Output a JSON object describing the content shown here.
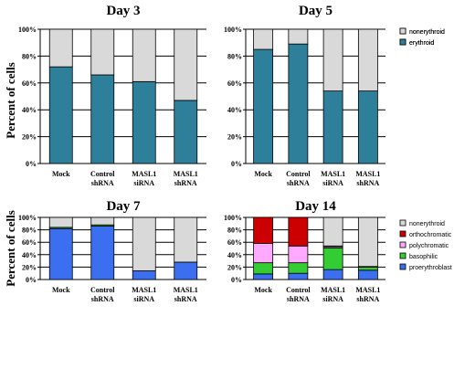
{
  "y_axis_label": "Percent of cells",
  "chart_data": [
    {
      "type": "bar",
      "stacked": true,
      "title": "Day 3",
      "categories": [
        "Mock",
        "Control shRNA",
        "MASL1 siRNA",
        "MASL1 shRNA"
      ],
      "ylim": [
        0,
        100
      ],
      "yticks": [
        "0%",
        "20%",
        "40%",
        "60%",
        "80%",
        "100%"
      ],
      "series": [
        {
          "name": "erythroid",
          "color": "#2e7f99",
          "values": [
            72,
            66,
            61,
            47
          ]
        },
        {
          "name": "nonerythroid",
          "color": "#d9d9d9",
          "values": [
            28,
            34,
            39,
            53
          ]
        }
      ],
      "legend": [
        "nonerythroid",
        "erythroid"
      ]
    },
    {
      "type": "bar",
      "stacked": true,
      "title": "Day 5",
      "categories": [
        "Mock",
        "Control shRNA",
        "MASL1 siRNA",
        "MASL1 shRNA"
      ],
      "ylim": [
        0,
        100
      ],
      "yticks": [
        "0%",
        "20%",
        "40%",
        "60%",
        "80%",
        "100%"
      ],
      "series": [
        {
          "name": "erythroid",
          "color": "#2e7f99",
          "values": [
            85,
            89,
            54,
            54
          ]
        },
        {
          "name": "nonerythroid",
          "color": "#d9d9d9",
          "values": [
            15,
            11,
            46,
            46
          ]
        }
      ],
      "legend": [
        "nonerythroid",
        "erythroid"
      ]
    },
    {
      "type": "bar",
      "stacked": true,
      "title": "Day 7",
      "categories": [
        "Mock",
        "Control shRNA",
        "MASL1 siRNA",
        "MASL1 shRNA"
      ],
      "ylim": [
        0,
        100
      ],
      "yticks": [
        "0%",
        "20%",
        "40%",
        "60%",
        "80%",
        "100%"
      ],
      "series": [
        {
          "name": "proerythroblast",
          "color": "#3b6fef",
          "values": [
            82,
            86,
            14,
            28
          ]
        },
        {
          "name": "basophilic",
          "color": "#33cc33",
          "values": [
            2,
            2,
            0,
            0
          ]
        },
        {
          "name": "nonerythroid",
          "color": "#d9d9d9",
          "values": [
            16,
            12,
            86,
            72
          ]
        }
      ],
      "legend": []
    },
    {
      "type": "bar",
      "stacked": true,
      "title": "Day 14",
      "categories": [
        "Mock",
        "Control shRNA",
        "MASL1 siRNA",
        "MASL1 shRNA"
      ],
      "ylim": [
        0,
        100
      ],
      "yticks": [
        "0%",
        "20%",
        "40%",
        "60%",
        "80%",
        "100%"
      ],
      "series": [
        {
          "name": "proerythroblast",
          "color": "#3b6fef",
          "values": [
            9,
            10,
            16,
            15
          ]
        },
        {
          "name": "basophilic",
          "color": "#33cc33",
          "values": [
            18,
            17,
            35,
            5
          ]
        },
        {
          "name": "polychromatic",
          "color": "#ffaaff",
          "values": [
            31,
            27,
            2,
            0
          ]
        },
        {
          "name": "orthochromatic",
          "color": "#cc0000",
          "values": [
            42,
            46,
            1,
            1
          ]
        },
        {
          "name": "nonerythroid",
          "color": "#d9d9d9",
          "values": [
            0,
            0,
            46,
            79
          ]
        }
      ],
      "legend": [
        "nonerythroid",
        "orthochromatic",
        "polychromatic",
        "basophilic",
        "proerythroblast"
      ]
    }
  ]
}
